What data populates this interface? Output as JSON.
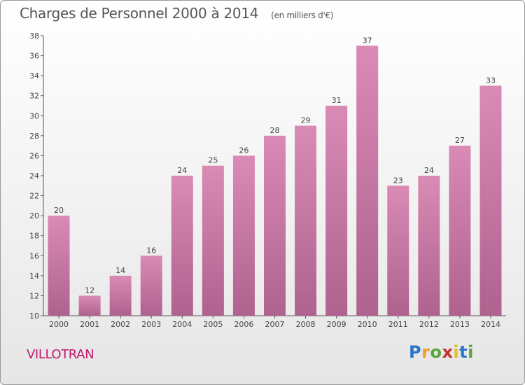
{
  "header": {
    "title": "Charges de Personnel 2000 à 2014",
    "subtitle": "(en milliers d'€)"
  },
  "footer": {
    "town": "VILLOTRAN",
    "logo": {
      "letters": [
        "P",
        "r",
        "o",
        "x",
        "i",
        "t",
        "i"
      ],
      "colors": [
        "#2a77c9",
        "#f0a020",
        "#5aa53a",
        "#c43030",
        "#e0c020",
        "#2a77c9",
        "#5aa53a"
      ]
    }
  },
  "chart_data": {
    "type": "bar",
    "categories": [
      "2000",
      "2001",
      "2002",
      "2003",
      "2004",
      "2005",
      "2006",
      "2007",
      "2008",
      "2009",
      "2010",
      "2011",
      "2012",
      "2013",
      "2014"
    ],
    "values": [
      20,
      12,
      14,
      16,
      24,
      25,
      26,
      28,
      29,
      31,
      37,
      23,
      24,
      27,
      33
    ],
    "ylim": [
      10,
      38
    ],
    "yticks": [
      10,
      12,
      14,
      16,
      18,
      20,
      22,
      24,
      26,
      28,
      30,
      32,
      34,
      36,
      38
    ],
    "grid": false,
    "bar_color": "#d98bb5",
    "bar_color_dark": "#b0628f"
  }
}
